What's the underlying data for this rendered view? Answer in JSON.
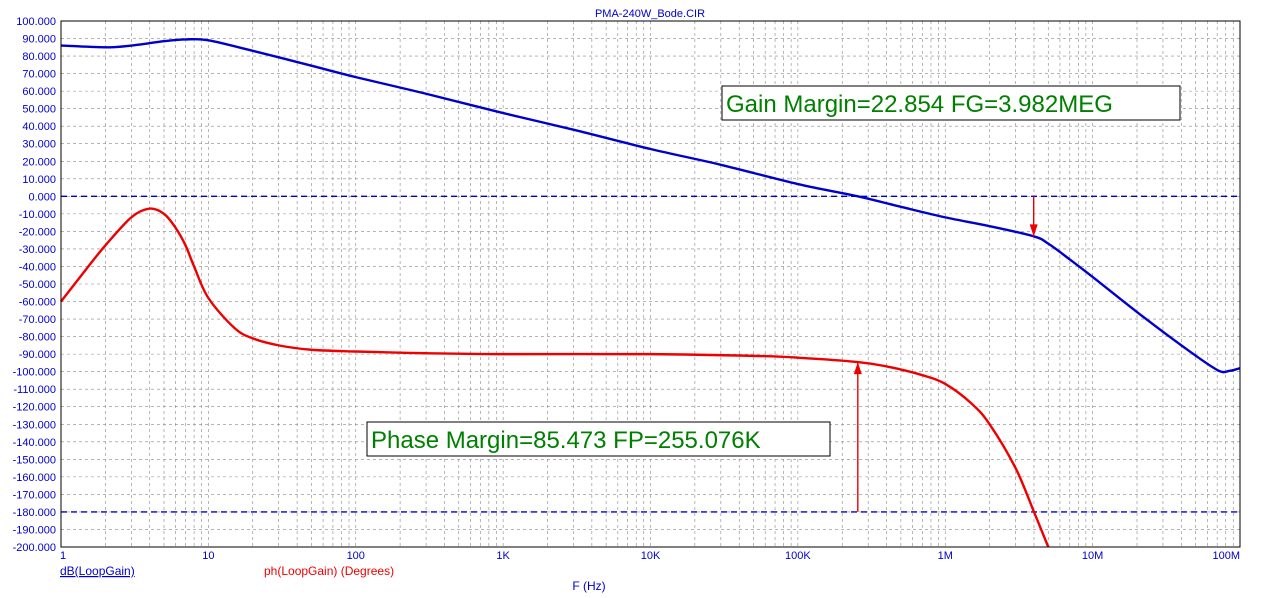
{
  "chart_data": {
    "type": "line",
    "title": "PMA-240W_Bode.CIR",
    "xlabel": "F (Hz)",
    "x_scale": "log",
    "xlim": [
      1,
      100000000
    ],
    "ylim": [
      -200,
      100
    ],
    "grid": true,
    "x_tick_labels": [
      {
        "value": 1,
        "label": "1"
      },
      {
        "value": 10,
        "label": "10"
      },
      {
        "value": 100,
        "label": "100"
      },
      {
        "value": 1000,
        "label": "1K"
      },
      {
        "value": 10000,
        "label": "10K"
      },
      {
        "value": 100000,
        "label": "100K"
      },
      {
        "value": 1000000,
        "label": "1M"
      },
      {
        "value": 10000000,
        "label": "10M"
      },
      {
        "value": 100000000,
        "label": "100M"
      }
    ],
    "y_tick_labels": [
      {
        "value": 100,
        "label": "100.000"
      },
      {
        "value": 90,
        "label": "90.000"
      },
      {
        "value": 80,
        "label": "80.000"
      },
      {
        "value": 70,
        "label": "70.000"
      },
      {
        "value": 60,
        "label": "60.000"
      },
      {
        "value": 50,
        "label": "50.000"
      },
      {
        "value": 40,
        "label": "40.000"
      },
      {
        "value": 30,
        "label": "30.000"
      },
      {
        "value": 20,
        "label": "20.000"
      },
      {
        "value": 10,
        "label": "10.000"
      },
      {
        "value": 0,
        "label": "0.000"
      },
      {
        "value": -10,
        "label": "-10.000"
      },
      {
        "value": -20,
        "label": "-20.000"
      },
      {
        "value": -30,
        "label": "-30.000"
      },
      {
        "value": -40,
        "label": "-40.000"
      },
      {
        "value": -50,
        "label": "-50.000"
      },
      {
        "value": -60,
        "label": "-60.000"
      },
      {
        "value": -70,
        "label": "-70.000"
      },
      {
        "value": -80,
        "label": "-80.000"
      },
      {
        "value": -90,
        "label": "-90.000"
      },
      {
        "value": -100,
        "label": "-100.000"
      },
      {
        "value": -110,
        "label": "-110.000"
      },
      {
        "value": -120,
        "label": "-120.000"
      },
      {
        "value": -130,
        "label": "-130.000"
      },
      {
        "value": -140,
        "label": "-140.000"
      },
      {
        "value": -150,
        "label": "-150.000"
      },
      {
        "value": -160,
        "label": "-160.000"
      },
      {
        "value": -170,
        "label": "-170.000"
      },
      {
        "value": -180,
        "label": "-180.000"
      },
      {
        "value": -190,
        "label": "-190.000"
      },
      {
        "value": -200,
        "label": "-200.000"
      }
    ],
    "series": [
      {
        "name": "dB(LoopGain)",
        "color": "#0000cc",
        "x": [
          1,
          2,
          3,
          5,
          7,
          10,
          20,
          50,
          100,
          300,
          1000,
          3000,
          10000,
          30000,
          100000,
          255076,
          500000,
          1000000,
          2000000,
          3982000,
          5000000,
          7000000,
          10000000,
          20000000,
          40000000,
          70000000,
          85000000,
          100000000
        ],
        "values": [
          86,
          85,
          86,
          88.5,
          89.5,
          89,
          83,
          74.5,
          68,
          58.5,
          47.5,
          38,
          27,
          18,
          7,
          0,
          -6,
          -12,
          -17,
          -22.8,
          -27,
          -36,
          -46,
          -66,
          -85,
          -99,
          -99.5,
          -98
        ]
      },
      {
        "name": "ph(LoopGain) (Degrees)",
        "color": "#ee0000",
        "x": [
          1,
          1.5,
          2,
          3,
          4,
          5,
          6,
          7,
          8,
          10,
          15,
          20,
          30,
          50,
          100,
          300,
          1000,
          10000,
          50000,
          100000,
          255076,
          400000,
          700000,
          1000000,
          1500000,
          2000000,
          3000000,
          4000000,
          5000000
        ],
        "values": [
          -60,
          -41,
          -28,
          -12,
          -7,
          -10,
          -18,
          -28,
          -40,
          -58,
          -75,
          -81,
          -85,
          -87.5,
          -88.5,
          -89.5,
          -90,
          -90,
          -91,
          -92,
          -94.5,
          -97,
          -102,
          -107,
          -118,
          -130,
          -155,
          -180,
          -200
        ]
      }
    ],
    "reference_lines": [
      {
        "y": 0,
        "color": "#0000cc"
      },
      {
        "y": -180,
        "color": "#0000cc"
      }
    ],
    "annotations": [
      {
        "text": "Gain Margin=22.854 FG=3.982MEG",
        "at_x": 3982000,
        "y_from": 0,
        "y_to": -22.854,
        "color": "#ee0000"
      },
      {
        "text": "Phase Margin=85.473 FP=255.076K",
        "at_x": 255076,
        "y_from": -180,
        "y_to": -94.527,
        "color": "#ee0000"
      }
    ],
    "legend": [
      {
        "label": "dB(LoopGain)",
        "color": "#0000cc",
        "underline": true
      },
      {
        "label": "ph(LoopGain) (Degrees)",
        "color": "#ee0000",
        "underline": false
      }
    ]
  },
  "colors": {
    "gain": "#0000cc",
    "phase": "#ee0000",
    "annotation_text": "#008000",
    "title": "#0000cc",
    "axis_text": "#0000cc",
    "grid": "#888888"
  }
}
